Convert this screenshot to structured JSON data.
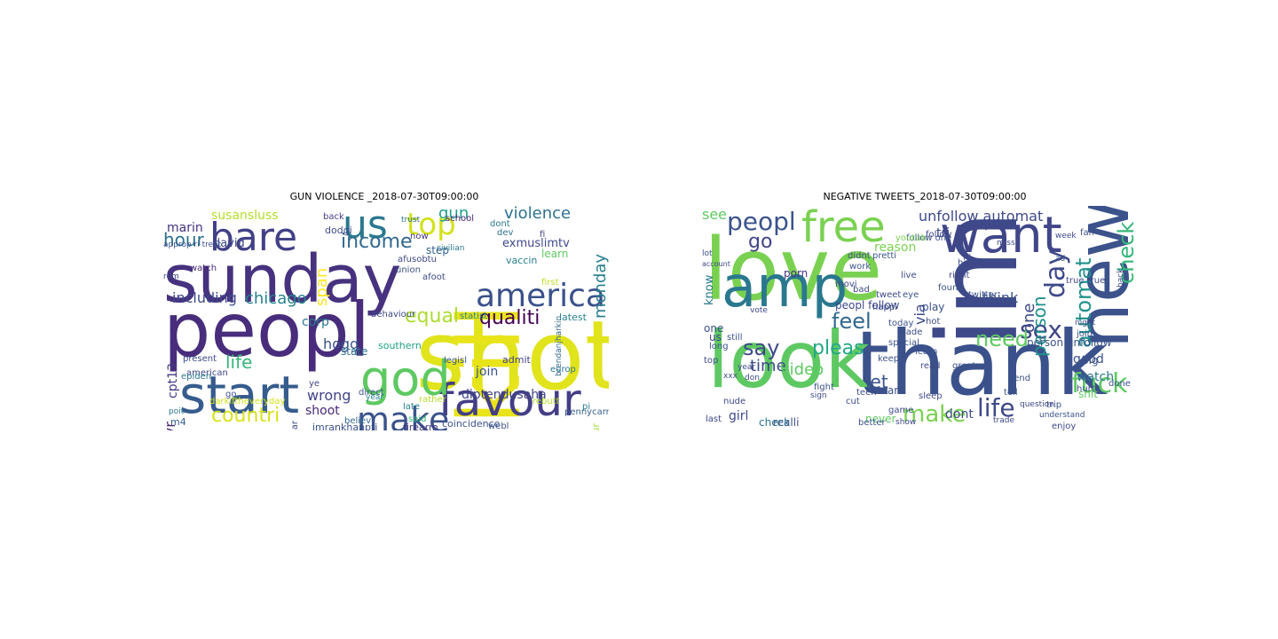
{
  "figure": {
    "panels": [
      {
        "title": "GUN VIOLENCE _2018-07-30T09:00:00",
        "words": [
          {
            "text": "sunday",
            "color": "#46327e"
          },
          {
            "text": "peopl",
            "color": "#472d7b"
          },
          {
            "text": "shot",
            "color": "#e1e31b"
          },
          {
            "text": "kill",
            "color": "#e8e419"
          },
          {
            "text": "start",
            "color": "#365c8d"
          },
          {
            "text": "america",
            "color": "#3b518b"
          },
          {
            "text": "favour",
            "color": "#433e85"
          },
          {
            "text": "god",
            "color": "#5ec962"
          },
          {
            "text": "make",
            "color": "#3b528b"
          },
          {
            "text": "bare",
            "color": "#424086"
          },
          {
            "text": "us",
            "color": "#2a788e"
          },
          {
            "text": "top",
            "color": "#d2e21b"
          },
          {
            "text": "income",
            "color": "#31688e"
          },
          {
            "text": "qualiti",
            "color": "#440154"
          },
          {
            "text": "violence",
            "color": "#2c728e"
          },
          {
            "text": "equal",
            "color": "#addc30"
          },
          {
            "text": "countri",
            "color": "#d8e219"
          },
          {
            "text": "hour",
            "color": "#2d708e"
          },
          {
            "text": "life",
            "color": "#35b779"
          },
          {
            "text": "chicago",
            "color": "#26828e"
          },
          {
            "text": "including",
            "color": "#3e4989"
          },
          {
            "text": "gun",
            "color": "#1f9e89"
          },
          {
            "text": "span",
            "color": "#fde725"
          },
          {
            "text": "monday",
            "color": "#277f8e"
          },
          {
            "text": "corp",
            "color": "#2a788e"
          },
          {
            "text": "wrong",
            "color": "#414487"
          },
          {
            "text": "shoot",
            "color": "#482878"
          },
          {
            "text": "hogg",
            "color": "#3b528b"
          },
          {
            "text": "diptendusaha",
            "color": "#404688"
          },
          {
            "text": "susansluss",
            "color": "#b5de2b"
          },
          {
            "text": "marin",
            "color": "#46327e"
          },
          {
            "text": "david",
            "color": "#3e4989"
          },
          {
            "text": "bhrgvr",
            "color": "#482475"
          },
          {
            "text": "cpt13",
            "color": "#443983"
          },
          {
            "text": "exmuslimtv",
            "color": "#3e4989"
          },
          {
            "text": "join",
            "color": "#3b528b"
          },
          {
            "text": "m4",
            "color": "#355f8d"
          },
          {
            "text": "admit",
            "color": "#424086"
          },
          {
            "text": "vaccin",
            "color": "#277f8e"
          },
          {
            "text": "step",
            "color": "#33638d"
          },
          {
            "text": "learn",
            "color": "#5ec962"
          },
          {
            "text": "cultur",
            "color": "#a0da39"
          },
          {
            "text": "coincidence",
            "color": "#3b528b"
          },
          {
            "text": "imrankhanpti",
            "color": "#3b528b"
          },
          {
            "text": "rebutt",
            "color": "#b5de2b"
          },
          {
            "text": "firearm",
            "color": "#443983"
          },
          {
            "text": "state",
            "color": "#2c728e"
          },
          {
            "text": "southern",
            "color": "#1fa188"
          },
          {
            "text": "american",
            "color": "#404688"
          },
          {
            "text": "epiden",
            "color": "#2a788e"
          },
          {
            "text": "present",
            "color": "#3e4989"
          },
          {
            "text": "behaviour",
            "color": "#3e4989"
          },
          {
            "text": "rather",
            "color": "#b5de2b"
          },
          {
            "text": "believ",
            "color": "#31688e"
          },
          {
            "text": "latest",
            "color": "#26828e"
          },
          {
            "text": "europ",
            "color": "#2a788e"
          },
          {
            "text": "dont",
            "color": "#2a788e"
          },
          {
            "text": "watch",
            "color": "#482878"
          },
          {
            "text": "approp ri treat",
            "color": "#3b528b"
          },
          {
            "text": "afusobtu",
            "color": "#404688"
          },
          {
            "text": "union",
            "color": "#3b528b"
          },
          {
            "text": "trust",
            "color": "#2c728e"
          },
          {
            "text": "school",
            "color": "#482475"
          },
          {
            "text": "dodgi",
            "color": "#3e4989"
          },
          {
            "text": "back",
            "color": "#433e85"
          },
          {
            "text": "now",
            "color": "#46327e"
          },
          {
            "text": "dev",
            "color": "#2c728e"
          },
          {
            "text": "fi",
            "color": "#414487"
          },
          {
            "text": "first",
            "color": "#bddf26"
          },
          {
            "text": "civilian",
            "color": "#2a788e"
          },
          {
            "text": "afoot",
            "color": "#3e4989"
          },
          {
            "text": "statist",
            "color": "#26828e"
          },
          {
            "text": "brendanjharkin",
            "color": "#31688e"
          },
          {
            "text": "pennycarrigan",
            "color": "#355f8d"
          },
          {
            "text": "pi",
            "color": "#2a788e"
          },
          {
            "text": "webl",
            "color": "#3b528b"
          },
          {
            "text": "darkiftheveryday",
            "color": "#d2e21b"
          },
          {
            "text": "ye",
            "color": "#414487"
          },
          {
            "text": "go",
            "color": "#3b528b"
          },
          {
            "text": "declar",
            "color": "#3e4989"
          },
          {
            "text": "year",
            "color": "#26828e"
          },
          {
            "text": "said",
            "color": "#35b779"
          },
          {
            "text": "late",
            "color": "#26828e"
          },
          {
            "text": "direct",
            "color": "#3b528b"
          },
          {
            "text": "legisl",
            "color": "#3b528b"
          },
          {
            "text": "poit",
            "color": "#2a788e"
          },
          {
            "text": "rom",
            "color": "#3e4989"
          },
          {
            "text": "cover",
            "color": "#26828e"
          }
        ]
      },
      {
        "title": "NEGATIVE TWEETS_2018-07-30T09:00:00",
        "words": [
          {
            "text": "thank",
            "color": "#3b518b"
          },
          {
            "text": "im",
            "color": "#3e4989"
          },
          {
            "text": "love",
            "color": "#7ad151"
          },
          {
            "text": "look",
            "color": "#5ec962"
          },
          {
            "text": "new",
            "color": "#3b528b"
          },
          {
            "text": "amp",
            "color": "#2a788e"
          },
          {
            "text": "want",
            "color": "#404688"
          },
          {
            "text": "free",
            "color": "#7ad151"
          },
          {
            "text": "peopl",
            "color": "#3b528b"
          },
          {
            "text": "feel",
            "color": "#31688e"
          },
          {
            "text": "check",
            "color": "#35b779"
          },
          {
            "text": "automat",
            "color": "#21918c"
          },
          {
            "text": "day",
            "color": "#3e4989"
          },
          {
            "text": "fuck",
            "color": "#5ec962"
          },
          {
            "text": "life",
            "color": "#3e4989"
          },
          {
            "text": "make",
            "color": "#7ad151"
          },
          {
            "text": "sex",
            "color": "#404688"
          },
          {
            "text": "need",
            "color": "#5ec962"
          },
          {
            "text": "say",
            "color": "#3e4989"
          },
          {
            "text": "pleas",
            "color": "#22a884"
          },
          {
            "text": "time",
            "color": "#3e4989"
          },
          {
            "text": "video",
            "color": "#5ec962"
          },
          {
            "text": "let",
            "color": "#3b528b"
          },
          {
            "text": "go",
            "color": "#414487"
          },
          {
            "text": "see",
            "color": "#5ec962"
          },
          {
            "text": "unfollow automat",
            "color": "#3e4989"
          },
          {
            "text": "person",
            "color": "#21918c"
          },
          {
            "text": "one",
            "color": "#3e4989"
          },
          {
            "text": "via",
            "color": "#3e4989"
          },
          {
            "text": "think",
            "color": "#3b528b"
          },
          {
            "text": "watch",
            "color": "#2a788e"
          },
          {
            "text": "good",
            "color": "#3b528b"
          },
          {
            "text": "dont",
            "color": "#3e4989"
          },
          {
            "text": "realli",
            "color": "#3b528b"
          },
          {
            "text": "check",
            "color": "#2c728e"
          },
          {
            "text": "never",
            "color": "#5ec962"
          },
          {
            "text": "girl",
            "color": "#3e4989"
          },
          {
            "text": "know",
            "color": "#2a788e"
          },
          {
            "text": "last",
            "color": "#3e4989"
          },
          {
            "text": "porn",
            "color": "#46327e"
          },
          {
            "text": "play",
            "color": "#3b528b"
          },
          {
            "text": "start",
            "color": "#3b528b"
          },
          {
            "text": "keep",
            "color": "#3b528b"
          },
          {
            "text": "tri",
            "color": "#3e4989"
          },
          {
            "text": "shit",
            "color": "#5ec962"
          },
          {
            "text": "reason",
            "color": "#7ad151"
          },
          {
            "text": "peopl follow",
            "color": "#3e4989"
          },
          {
            "text": "person unfollow",
            "color": "#3b528b"
          },
          {
            "text": "join",
            "color": "#3b528b"
          },
          {
            "text": "hurt",
            "color": "#3e4989"
          },
          {
            "text": "big",
            "color": "#3b528b"
          },
          {
            "text": "teen",
            "color": "#3e4989"
          },
          {
            "text": "cut",
            "color": "#3e4989"
          },
          {
            "text": "fight",
            "color": "#3b528b"
          },
          {
            "text": "us",
            "color": "#404688"
          },
          {
            "text": "one",
            "color": "#3b528b"
          },
          {
            "text": "long",
            "color": "#3b528b"
          },
          {
            "text": "top",
            "color": "#3e4989"
          },
          {
            "text": "nude",
            "color": "#3e4989"
          },
          {
            "text": "lot",
            "color": "#3b528b"
          },
          {
            "text": "account",
            "color": "#3e4989"
          },
          {
            "text": "bad",
            "color": "#3e4989"
          },
          {
            "text": "found",
            "color": "#3b528b"
          },
          {
            "text": "made",
            "color": "#3e4989"
          },
          {
            "text": "hot",
            "color": "#3e4989"
          },
          {
            "text": "today",
            "color": "#3b528b"
          },
          {
            "text": "learn",
            "color": "#3b528b"
          },
          {
            "text": "special",
            "color": "#3b528b"
          },
          {
            "text": "read",
            "color": "#3e4989"
          },
          {
            "text": "great",
            "color": "#3b528b"
          },
          {
            "text": "right",
            "color": "#3e4989"
          },
          {
            "text": "home",
            "color": "#3e4989"
          },
          {
            "text": "fan",
            "color": "#3b528b"
          },
          {
            "text": "back",
            "color": "#3e4989"
          },
          {
            "text": "true true",
            "color": "#3e4989"
          },
          {
            "text": "follow one",
            "color": "#3b528b"
          },
          {
            "text": "youtub",
            "color": "#7ad151"
          },
          {
            "text": "movi",
            "color": "#3e4989"
          },
          {
            "text": "eye",
            "color": "#3b528b"
          },
          {
            "text": "live",
            "color": "#3e4989"
          },
          {
            "text": "tweet",
            "color": "#3e4989"
          },
          {
            "text": "didnt",
            "color": "#3e4989"
          },
          {
            "text": "pretti",
            "color": "#3b528b"
          },
          {
            "text": "work",
            "color": "#3b528b"
          },
          {
            "text": "vote",
            "color": "#3e4989"
          },
          {
            "text": "better",
            "color": "#3b528b"
          },
          {
            "text": "show",
            "color": "#3e4989"
          },
          {
            "text": "trip",
            "color": "#3b528b"
          },
          {
            "text": "enjoy",
            "color": "#3e4989"
          },
          {
            "text": "done",
            "color": "#3b528b"
          },
          {
            "text": "sleep",
            "color": "#3e4989"
          },
          {
            "text": "follow",
            "color": "#3e4989"
          },
          {
            "text": "still",
            "color": "#3b528b"
          },
          {
            "text": "game",
            "color": "#3e4989"
          },
          {
            "text": "send",
            "color": "#3b528b"
          },
          {
            "text": "tell",
            "color": "#3b528b"
          },
          {
            "text": "week",
            "color": "#3e4989"
          },
          {
            "text": "night",
            "color": "#3e4989"
          },
          {
            "text": "hi",
            "color": "#3e4989"
          },
          {
            "text": "happi",
            "color": "#3e4989"
          },
          {
            "text": "understand",
            "color": "#3b528b"
          },
          {
            "text": "question",
            "color": "#3e4989"
          },
          {
            "text": "trade",
            "color": "#3e4989"
          },
          {
            "text": "twitter",
            "color": "#3b528b"
          },
          {
            "text": "miss",
            "color": "#3e4989"
          },
          {
            "text": "sign",
            "color": "#3e4989"
          },
          {
            "text": "year",
            "color": "#3e4989"
          },
          {
            "text": "don",
            "color": "#3e4989"
          },
          {
            "text": "xxx",
            "color": "#3b528b"
          },
          {
            "text": "ad",
            "color": "#3b528b"
          }
        ]
      }
    ]
  }
}
